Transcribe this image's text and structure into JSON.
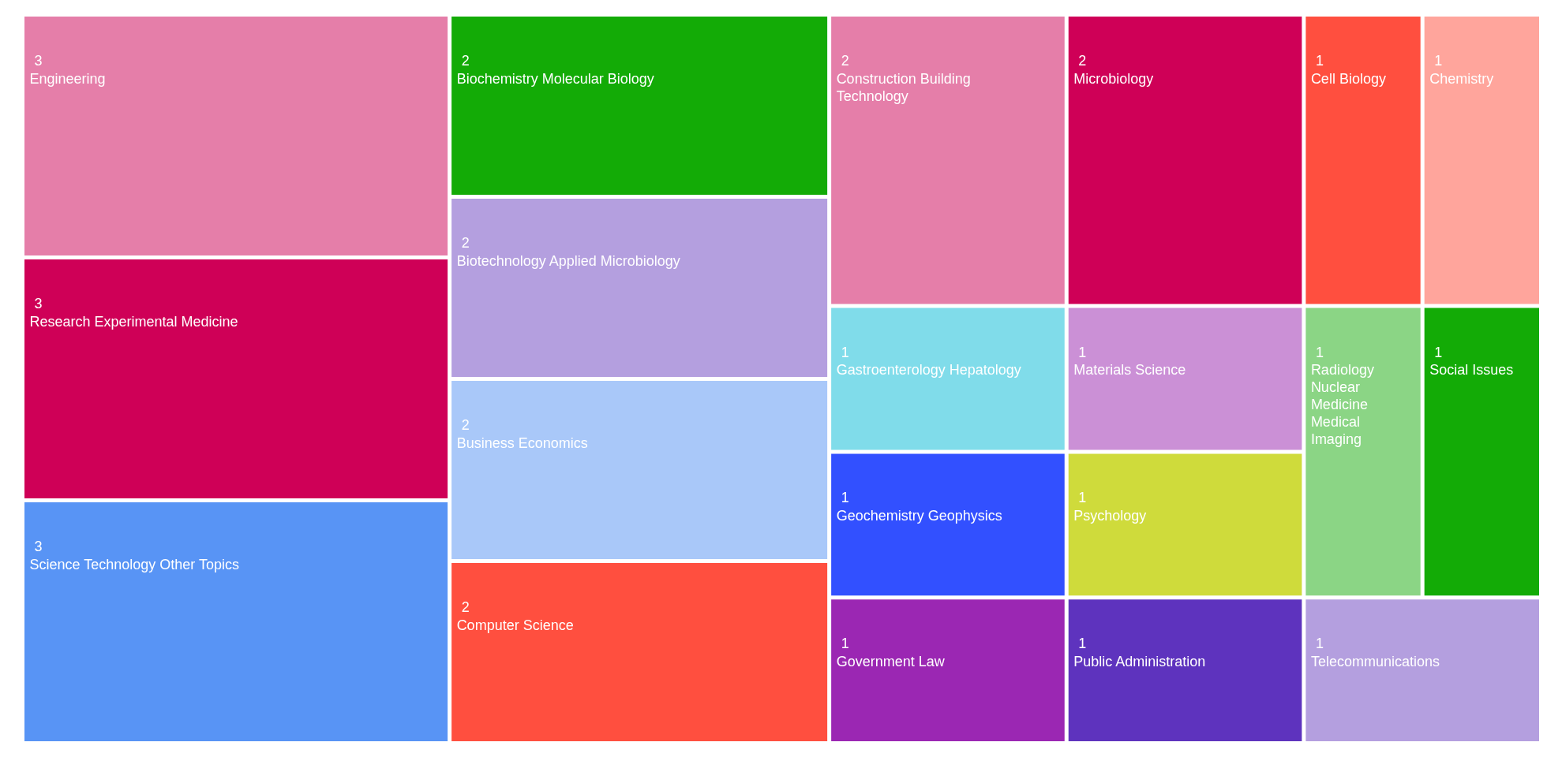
{
  "chart_data": {
    "type": "other",
    "data_labels": true,
    "categories": [
      "Engineering",
      "Research Experimental Medicine",
      "Science Technology Other Topics",
      "Biochemistry Molecular Biology",
      "Biotechnology Applied Microbiology",
      "Business Economics",
      "Computer Science",
      "Construction Building Technology",
      "Microbiology",
      "Cell Biology",
      "Chemistry",
      "Gastroenterology Hepatology",
      "Geochemistry Geophysics",
      "Government Law",
      "Materials Science",
      "Psychology",
      "Public Administration",
      "Radiology Nuclear Medicine Medical Imaging",
      "Social Issues",
      "Telecommunications"
    ],
    "values": [
      3,
      3,
      3,
      2,
      2,
      2,
      2,
      2,
      2,
      1,
      1,
      1,
      1,
      1,
      1,
      1,
      1,
      1,
      1,
      1
    ],
    "colors": [
      "#e57ea9",
      "#cf0057",
      "#5894f5",
      "#13ab06",
      "#b49fdf",
      "#a9c8f9",
      "#ff4f3f",
      "#e57ea9",
      "#cf0057",
      "#ff4f3f",
      "#ffa59c",
      "#80dcea",
      "#3250ff",
      "#9b27b3",
      "#cb90d6",
      "#cfdb3b",
      "#5e33be",
      "#8bd585",
      "#13ab06",
      "#b49fdf"
    ]
  }
}
